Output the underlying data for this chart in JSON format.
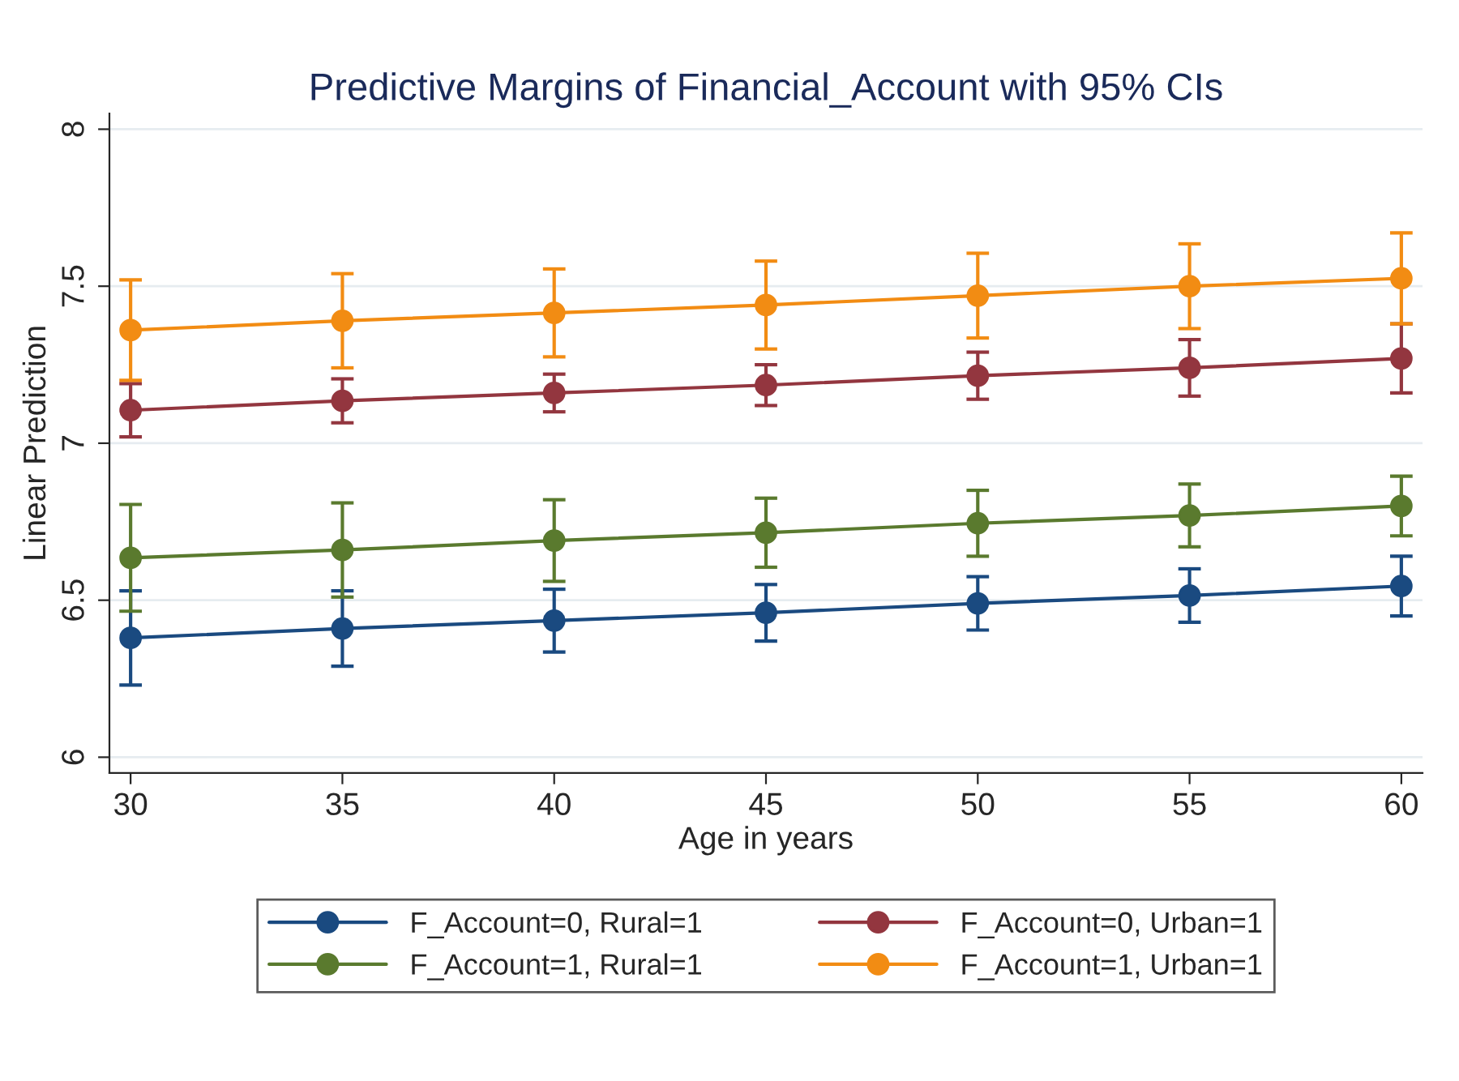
{
  "chart_data": {
    "type": "line",
    "title": "Predictive Margins of Financial_Account with 95% CIs",
    "xlabel": "Age in years",
    "ylabel": "Linear Prediction",
    "x": [
      30,
      35,
      40,
      45,
      50,
      55,
      60
    ],
    "series": [
      {
        "name": "F_Account=0, Rural=1",
        "color": "#1a4a80",
        "values": [
          6.38,
          6.41,
          6.435,
          6.46,
          6.49,
          6.515,
          6.545
        ],
        "errors": [
          0.15,
          0.12,
          0.1,
          0.09,
          0.085,
          0.085,
          0.095
        ]
      },
      {
        "name": "F_Account=1, Rural=1",
        "color": "#5a7a2e",
        "values": [
          6.635,
          6.66,
          6.69,
          6.715,
          6.745,
          6.77,
          6.8
        ],
        "errors": [
          0.17,
          0.15,
          0.13,
          0.11,
          0.105,
          0.1,
          0.095
        ]
      },
      {
        "name": "F_Account=0, Urban=1",
        "color": "#93363f",
        "values": [
          7.105,
          7.135,
          7.16,
          7.185,
          7.215,
          7.24,
          7.27
        ],
        "errors": [
          0.085,
          0.07,
          0.06,
          0.065,
          0.075,
          0.09,
          0.11
        ]
      },
      {
        "name": "F_Account=1, Urban=1",
        "color": "#f28c13",
        "values": [
          7.36,
          7.39,
          7.415,
          7.44,
          7.47,
          7.5,
          7.525
        ],
        "errors": [
          0.16,
          0.15,
          0.14,
          0.14,
          0.135,
          0.135,
          0.145
        ]
      }
    ],
    "xlim": [
      29.5,
      60.5
    ],
    "ylim": [
      5.95,
      8.05
    ],
    "xticks": [
      30,
      35,
      40,
      45,
      50,
      55,
      60
    ],
    "yticks": [
      6,
      6.5,
      7,
      7.5,
      8
    ],
    "grid": "y",
    "legend": "bottom",
    "marker": "circle",
    "line_style": "solid"
  }
}
